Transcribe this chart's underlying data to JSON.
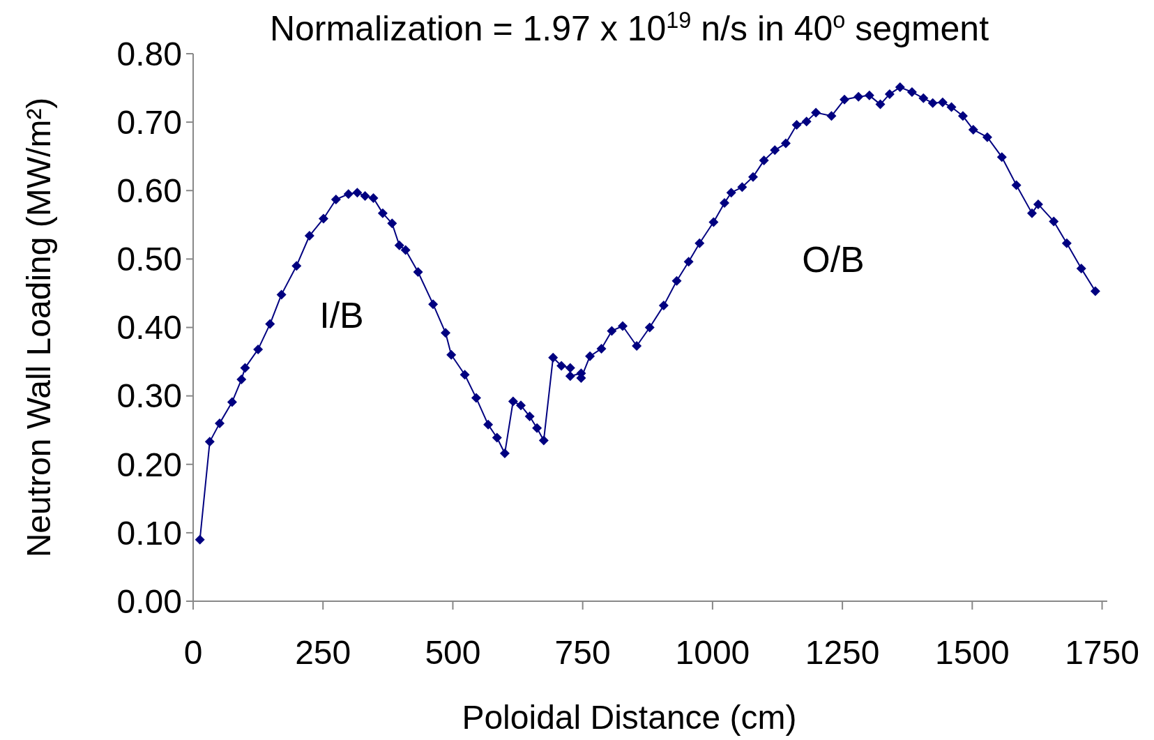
{
  "chart_data": {
    "type": "line",
    "title": "Normalization = 1.97 x 10$^{19}$ n/s in 40$^{o}$ segment",
    "xlabel": "Poloidal Distance (cm)",
    "ylabel": "Neutron Wall Loading (MW/m²)",
    "x": [
      13,
      32,
      51,
      75,
      93,
      100,
      125,
      148,
      170,
      199,
      224,
      251,
      275,
      299,
      316,
      331,
      347,
      365,
      383,
      397,
      409,
      433,
      462,
      486,
      497,
      523,
      545,
      568,
      585,
      600,
      616,
      631,
      648,
      662,
      675,
      693,
      709,
      726,
      726,
      747,
      747,
      764,
      786,
      806,
      827,
      854,
      879,
      906,
      931,
      954,
      975,
      1002,
      1023,
      1036,
      1057,
      1078,
      1099,
      1120,
      1141,
      1162,
      1181,
      1199,
      1229,
      1254,
      1281,
      1302,
      1323,
      1341,
      1361,
      1384,
      1406,
      1424,
      1443,
      1460,
      1482,
      1502,
      1529,
      1557,
      1585,
      1615,
      1627,
      1657,
      1682,
      1710,
      1737
    ],
    "series": [
      {
        "color": "#000080",
        "values": [
          0.09,
          0.233,
          0.26,
          0.291,
          0.324,
          0.341,
          0.368,
          0.405,
          0.448,
          0.49,
          0.534,
          0.559,
          0.587,
          0.595,
          0.597,
          0.592,
          0.589,
          0.567,
          0.552,
          0.52,
          0.513,
          0.481,
          0.434,
          0.392,
          0.36,
          0.331,
          0.297,
          0.258,
          0.239,
          0.216,
          0.292,
          0.286,
          0.27,
          0.253,
          0.235,
          0.356,
          0.344,
          0.341,
          0.329,
          0.333,
          0.326,
          0.358,
          0.369,
          0.395,
          0.402,
          0.373,
          0.4,
          0.432,
          0.468,
          0.496,
          0.523,
          0.554,
          0.582,
          0.597,
          0.605,
          0.62,
          0.644,
          0.659,
          0.669,
          0.696,
          0.701,
          0.714,
          0.709,
          0.733,
          0.737,
          0.739,
          0.726,
          0.741,
          0.751,
          0.744,
          0.735,
          0.728,
          0.729,
          0.722,
          0.709,
          0.689,
          0.678,
          0.649,
          0.608,
          0.567,
          0.58,
          0.555,
          0.523,
          0.486,
          0.453
        ]
      }
    ],
    "xlim": [
      0,
      1760
    ],
    "xticks": [
      0,
      250,
      500,
      750,
      1000,
      1250,
      1500,
      1750
    ],
    "ylim": [
      0,
      0.8
    ],
    "yticks": [
      {
        "value": 0,
        "label": "0.00"
      },
      {
        "value": 0.1,
        "label": "0.10"
      },
      {
        "value": 0.2,
        "label": "0.20"
      },
      {
        "value": 0.3,
        "label": "0.30"
      },
      {
        "value": 0.4,
        "label": "0.40"
      },
      {
        "value": 0.5,
        "label": "0.50"
      },
      {
        "value": 0.6,
        "label": "0.60"
      },
      {
        "value": 0.7,
        "label": "0.70"
      },
      {
        "value": 0.8,
        "label": "0.80"
      }
    ],
    "annotations": [
      "I/B",
      "O/B"
    ],
    "marker": "diamond",
    "line_style": "solid",
    "grid": false
  }
}
